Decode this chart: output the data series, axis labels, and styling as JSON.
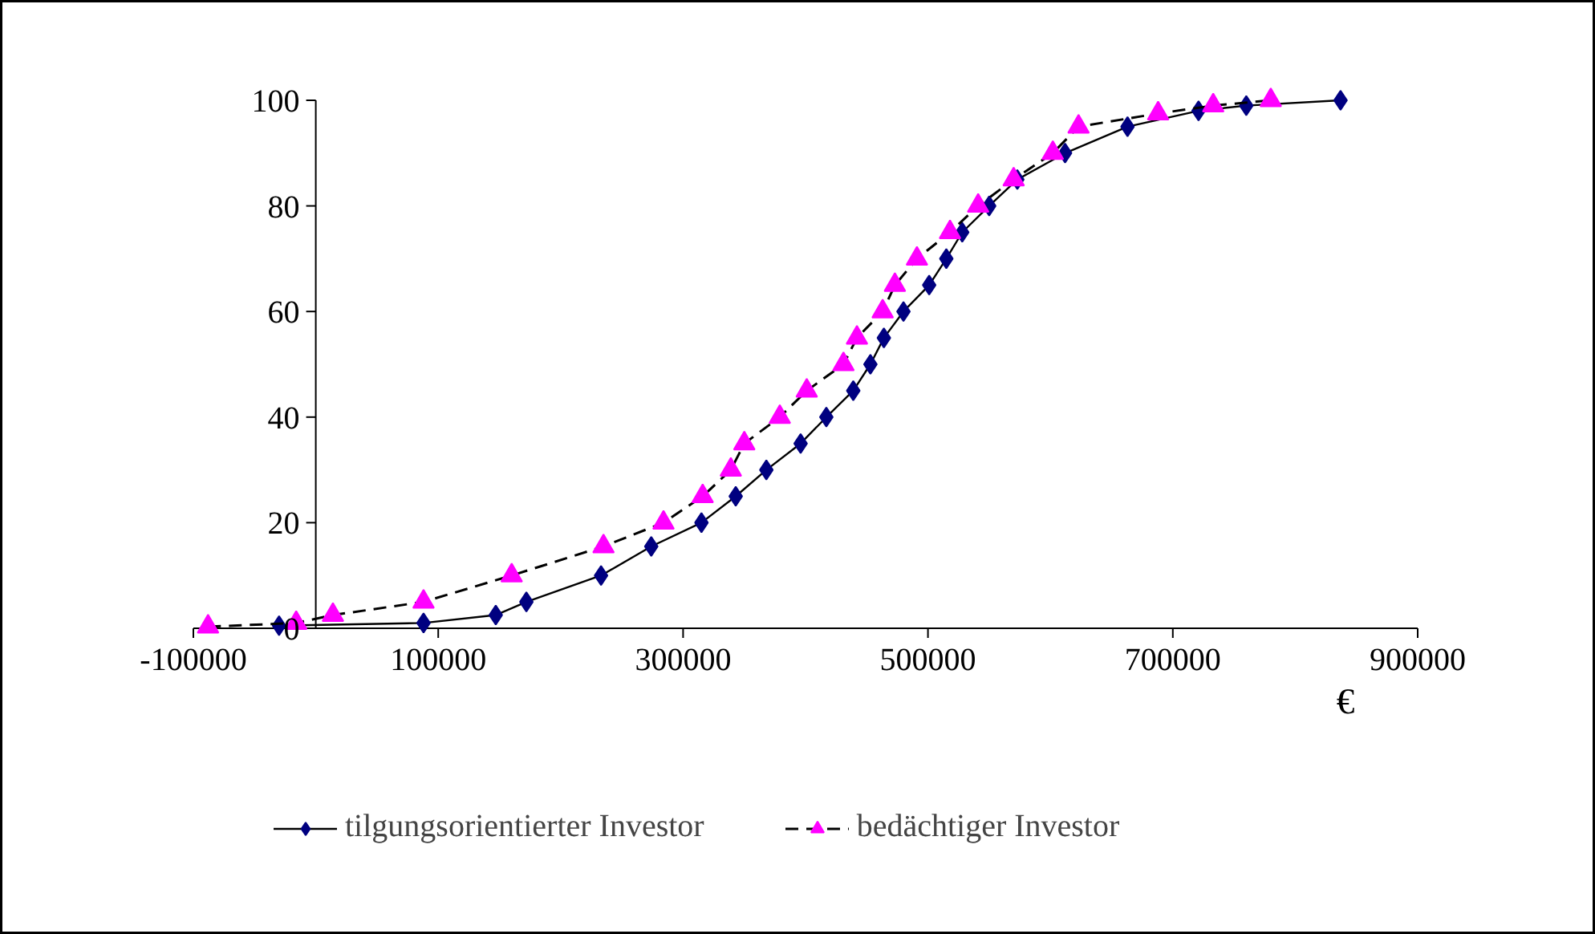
{
  "chart_data": {
    "type": "line",
    "xlabel": "€",
    "xlim": [
      -100000,
      900000
    ],
    "xticks": [
      -100000,
      100000,
      300000,
      500000,
      700000,
      900000
    ],
    "ylim": [
      0,
      100
    ],
    "yticks": [
      0,
      20,
      40,
      60,
      80,
      100
    ],
    "grid": false,
    "legend": "bottom",
    "series": [
      {
        "name": "tilgungsorientierter Investor",
        "color": "#000080",
        "marker": "diamond",
        "line_style": "solid",
        "x": [
          -30000,
          88000,
          147000,
          172000,
          233000,
          274000,
          315000,
          343000,
          368000,
          396000,
          417000,
          439000,
          453000,
          464000,
          480000,
          501000,
          515000,
          528000,
          550000,
          573000,
          612000,
          663000,
          721000,
          760000,
          837000
        ],
        "values": [
          0.5,
          1,
          2.5,
          5,
          10,
          15.5,
          20,
          25,
          30,
          35,
          40,
          45,
          50,
          55,
          60,
          65,
          70,
          75,
          80,
          85,
          90,
          95,
          98,
          99,
          100
        ]
      },
      {
        "name": "bedächtiger Investor",
        "color": "#ff00ff",
        "marker": "triangle",
        "line_style": "dashed",
        "x": [
          -88000,
          -16000,
          14000,
          88000,
          160000,
          235000,
          284000,
          316000,
          339000,
          350000,
          379000,
          401000,
          431000,
          442000,
          463000,
          473000,
          491000,
          518000,
          541000,
          570000,
          602000,
          623000,
          688000,
          733000,
          780000
        ],
        "values": [
          0.3,
          1,
          2.5,
          5,
          10,
          15.5,
          20,
          25,
          30,
          35,
          40,
          45,
          50,
          55,
          60,
          65,
          70,
          75,
          80,
          85,
          90,
          95,
          97.5,
          99,
          100
        ]
      }
    ]
  }
}
